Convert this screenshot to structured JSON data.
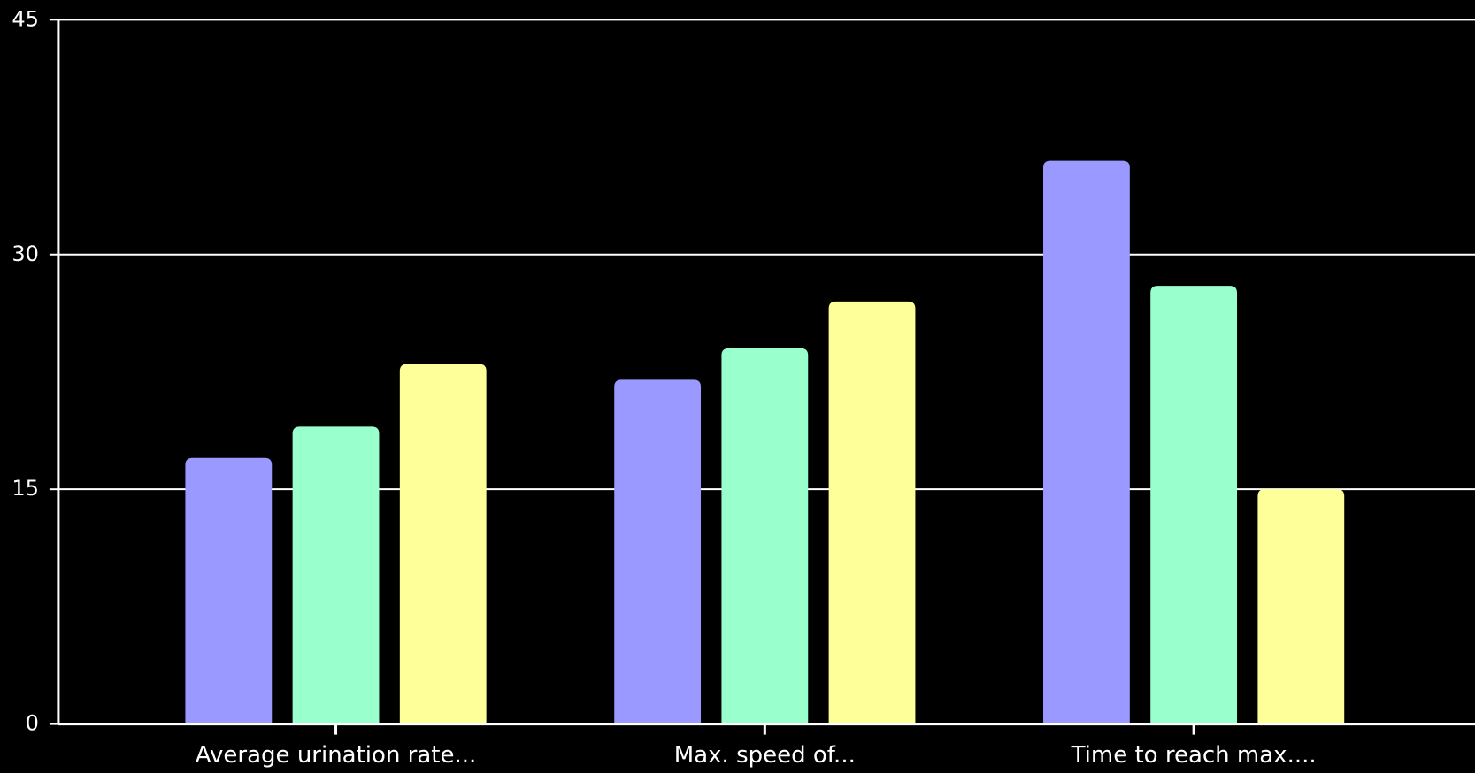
{
  "chart_data": {
    "type": "bar",
    "categories": [
      "Average urination rate...",
      "Max. speed of...",
      "Time to reach max...."
    ],
    "series": [
      {
        "color": "#9999ff",
        "values": [
          17,
          22,
          36
        ]
      },
      {
        "color": "#99ffcc",
        "values": [
          19,
          24,
          28
        ]
      },
      {
        "color": "#ffff99",
        "values": [
          23,
          27,
          15
        ]
      }
    ],
    "ylim": [
      0,
      45
    ],
    "yticks": [
      0,
      15,
      30,
      45
    ],
    "grid": true
  }
}
